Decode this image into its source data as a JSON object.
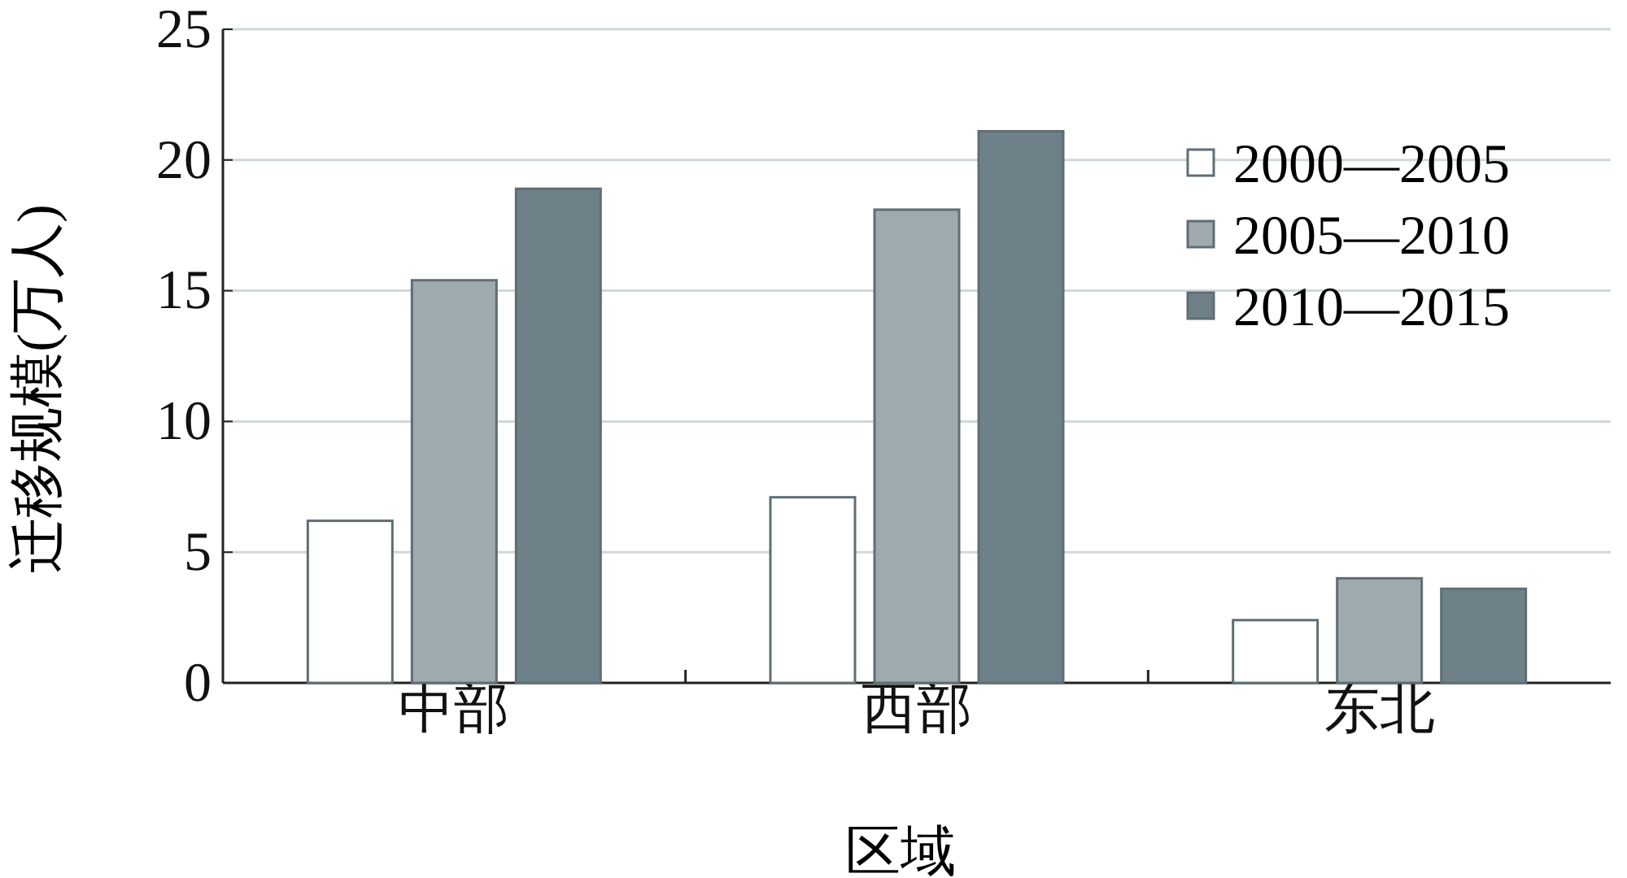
{
  "chart_data": {
    "type": "bar",
    "xlabel": "区域",
    "ylabel": "迁移规模(万人)",
    "categories": [
      "中部",
      "西部",
      "东北"
    ],
    "series": [
      {
        "name": "2000—2005",
        "color": "#ffffff",
        "values": [
          6.2,
          7.1,
          2.4
        ]
      },
      {
        "name": "2005—2010",
        "color": "#9eaaae",
        "values": [
          15.4,
          18.1,
          4.0
        ]
      },
      {
        "name": "2010—2015",
        "color": "#6e8088",
        "values": [
          18.9,
          21.1,
          3.6
        ]
      }
    ],
    "ylim": [
      0,
      25
    ],
    "yticks": [
      0,
      5,
      10,
      15,
      20,
      25
    ],
    "grid": "y",
    "legend": "top right"
  }
}
